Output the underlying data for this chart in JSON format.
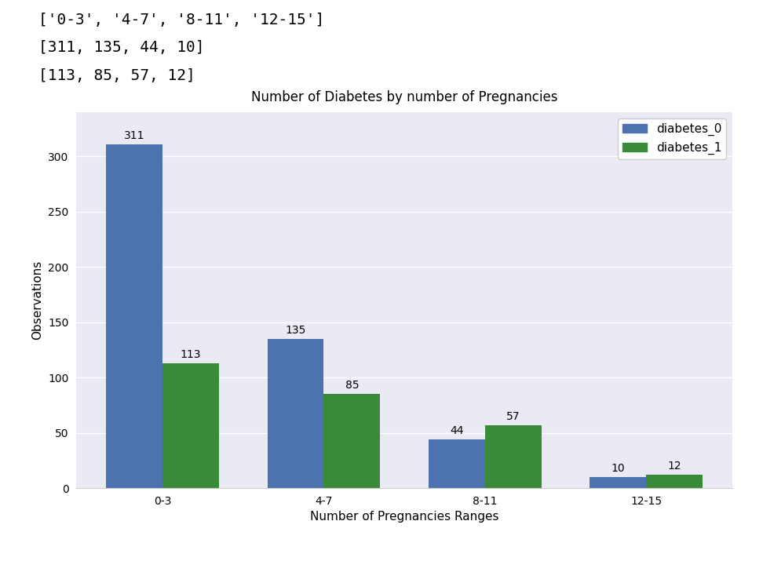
{
  "categories": [
    "0-3",
    "4-7",
    "8-11",
    "12-15"
  ],
  "diabetes_0": [
    311,
    135,
    44,
    10
  ],
  "diabetes_1": [
    113,
    85,
    57,
    12
  ],
  "bar_color_0": "#4c72b0",
  "bar_color_1": "#3a8a3a",
  "title": "Number of Diabetes by number of Pregnancies",
  "xlabel": "Number of Pregnancies Ranges",
  "ylabel": "Observations",
  "legend_labels": [
    "diabetes_0",
    "diabetes_1"
  ],
  "bg_color": "#eaeaf4",
  "ylim": [
    0,
    340
  ],
  "yticks": [
    0,
    50,
    100,
    150,
    200,
    250,
    300
  ],
  "bar_width": 0.35,
  "title_fontsize": 12,
  "label_fontsize": 11,
  "tick_fontsize": 10,
  "annot_fontsize": 10,
  "header_text_line1": "['0-3', '4-7', '8-11', '12-15']",
  "header_text_line2": "[311, 135, 44, 10]",
  "header_text_line3": "[113, 85, 57, 12]"
}
